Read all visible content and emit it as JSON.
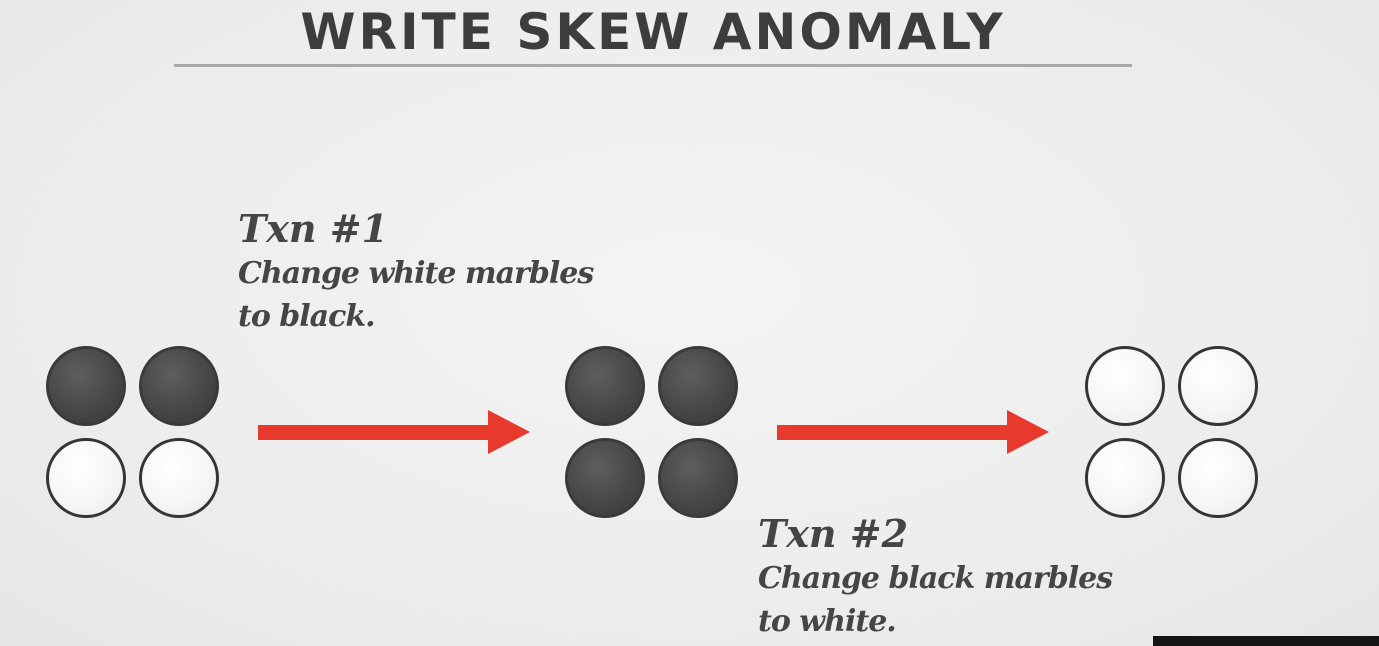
{
  "slide": {
    "title": "WRITE SKEW ANOMALY",
    "txn1": {
      "label": "Txn #1",
      "description_line1": "Change white marbles",
      "description_line2": "to black."
    },
    "txn2": {
      "label": "Txn #2",
      "description_line1": "Change black marbles",
      "description_line2": "to white."
    },
    "states": [
      {
        "marbles": [
          "black",
          "black",
          "white",
          "white"
        ]
      },
      {
        "marbles": [
          "black",
          "black",
          "black",
          "black"
        ]
      },
      {
        "marbles": [
          "white",
          "white",
          "white",
          "white"
        ]
      }
    ],
    "colors": {
      "arrow": "#e8392d",
      "black_marble": "#474747",
      "white_marble": "#f6f6f6",
      "title": "#3d3d3d",
      "background": "#efefef"
    }
  }
}
